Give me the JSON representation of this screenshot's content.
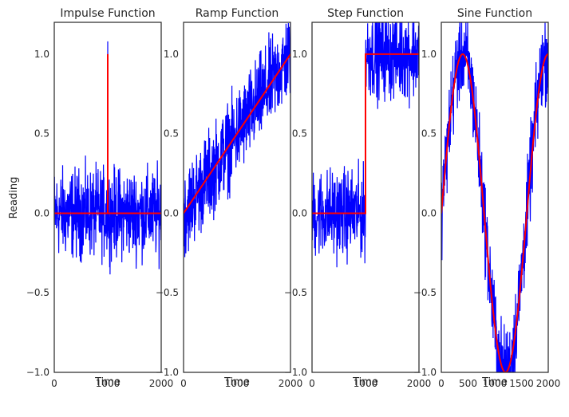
{
  "figure": {
    "ylabel": "Reading",
    "colors": {
      "noisy": "#0000ff",
      "clean": "#ff0000",
      "frame": "#262626"
    }
  },
  "chart_data": [
    {
      "type": "line",
      "title": "Impulse Function",
      "xlabel": "Time",
      "ylabel": "Reading",
      "xlim": [
        0,
        2000
      ],
      "ylim": [
        -1.0,
        1.2
      ],
      "xticks": [
        0,
        1000,
        2000
      ],
      "yticks": [
        -1.0,
        -0.5,
        0.0,
        0.5,
        1.0
      ],
      "xtick_labels": [
        "0",
        "1000",
        "2000"
      ],
      "ytick_labels": [
        "−1.0",
        "−0.5",
        "0.0",
        "0.5",
        "1.0"
      ],
      "noise_amplitude": 0.3,
      "series": [
        {
          "role": "noisy",
          "color": "#0000ff",
          "description": "clean signal plus noise"
        },
        {
          "role": "clean",
          "color": "#ff0000",
          "x": [
            0,
            1000,
            1000,
            1000,
            2000
          ],
          "y": [
            0,
            0,
            1.0,
            0,
            0
          ]
        }
      ],
      "peak_noisy_value": 1.08
    },
    {
      "type": "line",
      "title": "Ramp Function",
      "xlabel": "Time",
      "ylabel": "",
      "xlim": [
        0,
        2000
      ],
      "ylim": [
        -1.0,
        1.2
      ],
      "xticks": [
        0,
        1000,
        2000
      ],
      "yticks": [
        -1.0,
        -0.5,
        0.0,
        0.5,
        1.0
      ],
      "xtick_labels": [
        "0",
        "1000",
        "2000"
      ],
      "ytick_labels": [
        "−1.0",
        "−0.5",
        "0.0",
        "0.5",
        "1.0"
      ],
      "noise_amplitude": 0.3,
      "series": [
        {
          "role": "noisy",
          "color": "#0000ff",
          "description": "clean signal plus noise"
        },
        {
          "role": "clean",
          "color": "#ff0000",
          "x": [
            0,
            2000
          ],
          "y": [
            0,
            1.0
          ]
        }
      ]
    },
    {
      "type": "line",
      "title": "Step Function",
      "xlabel": "Time",
      "ylabel": "",
      "xlim": [
        0,
        2000
      ],
      "ylim": [
        -1.0,
        1.2
      ],
      "xticks": [
        0,
        1000,
        2000
      ],
      "yticks": [
        -1.0,
        -0.5,
        0.0,
        0.5,
        1.0
      ],
      "xtick_labels": [
        "0",
        "1000",
        "2000"
      ],
      "ytick_labels": [
        "−1.0",
        "−0.5",
        "0.0",
        "0.5",
        "1.0"
      ],
      "noise_amplitude": 0.3,
      "series": [
        {
          "role": "noisy",
          "color": "#0000ff",
          "description": "clean signal plus noise"
        },
        {
          "role": "clean",
          "color": "#ff0000",
          "x": [
            0,
            1000,
            1000,
            2000
          ],
          "y": [
            0,
            0,
            1.0,
            1.0
          ]
        }
      ]
    },
    {
      "type": "line",
      "title": "Sine Function",
      "xlabel": "Time",
      "ylabel": "",
      "xlim": [
        0,
        2000
      ],
      "ylim": [
        -1.0,
        1.2
      ],
      "xticks": [
        0,
        500,
        1000,
        1500,
        2000
      ],
      "yticks": [
        -1.0,
        -0.5,
        0.0,
        0.5,
        1.0
      ],
      "xtick_labels": [
        "0",
        "500",
        "1000",
        "1500",
        "2000"
      ],
      "ytick_labels": [
        "−1.0",
        "−0.5",
        "0.0",
        "0.5",
        "1.0"
      ],
      "noise_amplitude": 0.3,
      "series": [
        {
          "role": "noisy",
          "color": "#0000ff",
          "description": "clean signal plus noise"
        },
        {
          "role": "clean",
          "color": "#ff0000",
          "function": "sin",
          "amplitude": 1.0,
          "period": 1600
        }
      ]
    }
  ]
}
